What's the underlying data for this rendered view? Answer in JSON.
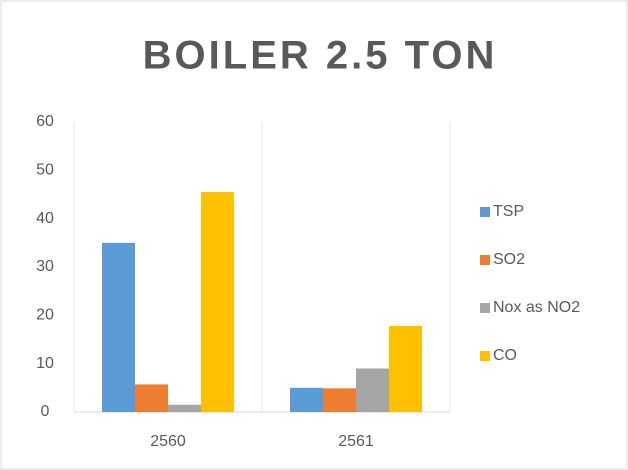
{
  "chart_data": {
    "type": "bar",
    "title": "BOILER 2.5 TON",
    "categories": [
      "2560",
      "2561"
    ],
    "series": [
      {
        "name": "TSP",
        "color": "#5b9bd5",
        "values": [
          35,
          5
        ]
      },
      {
        "name": "SO2",
        "color": "#ed7d31",
        "values": [
          5.7,
          4.9
        ]
      },
      {
        "name": "Nox as NO2",
        "color": "#a5a5a5",
        "values": [
          1.5,
          9
        ]
      },
      {
        "name": "CO",
        "color": "#ffc000",
        "values": [
          45.5,
          17.8
        ]
      }
    ],
    "ylim": [
      0,
      60
    ],
    "yticks": [
      0,
      10,
      20,
      30,
      40,
      50,
      60
    ],
    "grid": true,
    "legend": "right"
  }
}
